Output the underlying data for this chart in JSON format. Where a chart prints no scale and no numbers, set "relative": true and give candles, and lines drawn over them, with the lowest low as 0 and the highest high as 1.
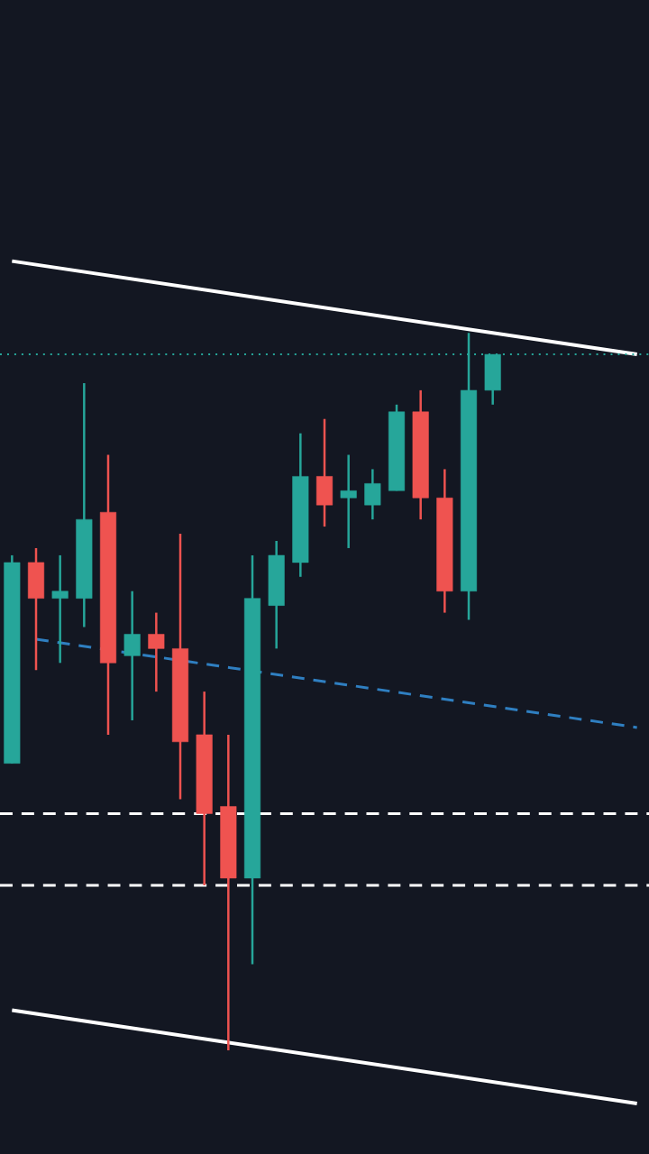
{
  "chart_data": {
    "type": "candlestick",
    "relative": true,
    "categories": [
      null,
      null,
      null,
      null,
      null,
      null,
      null,
      null,
      null,
      null,
      null,
      null,
      null,
      null,
      null,
      null,
      null,
      null,
      null,
      null,
      null,
      null,
      null,
      null,
      null,
      null,
      null
    ],
    "ohlc": [
      [
        0.4,
        0.69,
        0.4,
        0.68
      ],
      [
        0.68,
        0.7,
        0.53,
        0.63
      ],
      [
        0.63,
        0.69,
        0.54,
        0.64
      ],
      [
        0.63,
        0.93,
        0.59,
        0.74
      ],
      [
        0.75,
        0.83,
        0.44,
        0.54
      ],
      [
        0.55,
        0.64,
        0.46,
        0.58
      ],
      [
        0.58,
        0.61,
        0.5,
        0.56
      ],
      [
        0.56,
        0.72,
        0.35,
        0.43
      ],
      [
        0.44,
        0.5,
        0.23,
        0.33
      ],
      [
        0.34,
        0.44,
        0.0,
        0.24
      ],
      [
        0.24,
        0.69,
        0.12,
        0.63
      ],
      [
        0.62,
        0.71,
        0.56,
        0.69
      ],
      [
        0.68,
        0.86,
        0.66,
        0.8
      ],
      [
        0.8,
        0.88,
        0.73,
        0.76
      ],
      [
        0.77,
        0.83,
        0.7,
        0.78
      ],
      [
        0.76,
        0.81,
        0.74,
        0.79
      ],
      [
        0.78,
        0.9,
        0.78,
        0.89
      ],
      [
        0.89,
        0.92,
        0.74,
        0.77
      ],
      [
        0.77,
        0.81,
        0.61,
        0.64
      ],
      [
        0.64,
        1.0,
        0.6,
        0.92
      ],
      [
        0.92,
        0.97,
        0.9,
        0.97
      ],
      null,
      null,
      null,
      null,
      null,
      null
    ],
    "colors": [
      "#26a69a",
      "#ef5350",
      "#26a69a",
      "#26a69a",
      "#ef5350",
      "#26a69a",
      "#ef5350",
      "#ef5350",
      "#ef5350",
      "#ef5350",
      "#26a69a",
      "#26a69a",
      "#26a69a",
      "#ef5350",
      "#26a69a",
      "#26a69a",
      "#26a69a",
      "#ef5350",
      "#ef5350",
      "#26a69a",
      "#26a69a",
      null,
      null,
      null,
      null,
      null,
      null
    ],
    "series": [
      {
        "type": "line",
        "values": [
          1.1,
          null,
          null,
          null,
          null,
          null,
          null,
          null,
          null,
          null,
          null,
          null,
          null,
          null,
          null,
          null,
          null,
          null,
          null,
          null,
          null,
          null,
          null,
          null,
          null,
          null,
          0.97
        ],
        "color": "#ffffff",
        "line_style": "solid"
      },
      {
        "type": "line",
        "values": [
          0.056,
          null,
          null,
          null,
          null,
          null,
          null,
          null,
          null,
          null,
          null,
          null,
          null,
          null,
          null,
          null,
          null,
          null,
          null,
          null,
          null,
          null,
          null,
          null,
          null,
          null,
          -0.074
        ],
        "color": "#ffffff",
        "line_style": "solid"
      },
      {
        "type": "line",
        "values": [
          null,
          0.573,
          null,
          null,
          null,
          null,
          null,
          null,
          null,
          null,
          null,
          null,
          null,
          null,
          null,
          null,
          null,
          null,
          null,
          null,
          null,
          null,
          null,
          null,
          null,
          null,
          0.45
        ],
        "color": "#2f7fc1",
        "line_style": "dashed"
      }
    ],
    "ref_lines": [
      {
        "axis": "y",
        "value": 0.97,
        "color": "#26a69a",
        "line_style": "dotted"
      },
      {
        "axis": "y",
        "value": 0.33,
        "color": "#ffffff",
        "line_style": "dashed"
      },
      {
        "axis": "y",
        "value": 0.23,
        "color": "#ffffff",
        "line_style": "dashed"
      }
    ]
  }
}
